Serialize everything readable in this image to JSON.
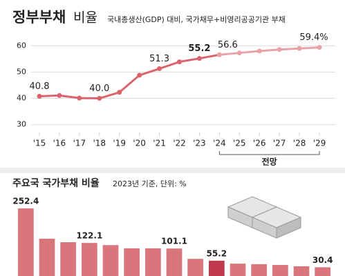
{
  "chart_data": [
    {
      "type": "line",
      "title": "정부부채",
      "title_light": "비율",
      "subtitle": "국내총생산(GDP) 대비, 국가채무+비영리공공기관 부채",
      "categories": [
        "'15",
        "'16",
        "'17",
        "'18",
        "'19",
        "'20",
        "'21",
        "'22",
        "'23",
        "'24",
        "'25",
        "'26",
        "'27",
        "'28",
        "'29"
      ],
      "values": [
        40.8,
        41.1,
        40.1,
        40.0,
        42.3,
        48.8,
        51.3,
        53.9,
        55.2,
        56.6,
        57.3,
        58.0,
        58.6,
        59.0,
        59.4
      ],
      "value_labels": [
        "40.8",
        null,
        null,
        "40.0",
        null,
        null,
        "51.3",
        null,
        "55.2",
        "56.6",
        null,
        null,
        null,
        null,
        "59.4%"
      ],
      "highlight_index": 8,
      "color": "#d9646b",
      "forecast_color": "#e9a3a6",
      "forecast": {
        "label": "전망",
        "from": 9,
        "to": 14
      },
      "ylim": [
        27,
        63
      ],
      "yticks": [
        30,
        40,
        50,
        60
      ],
      "grid": true
    },
    {
      "type": "bar",
      "title": "주요국 국가부채 비율",
      "subtitle": "2023년 기준, 단위: %",
      "categories": [
        null,
        null,
        null,
        null,
        null,
        null,
        null,
        null,
        null,
        null,
        null,
        null,
        null,
        null,
        null
      ],
      "values": [
        252.4,
        138.0,
        125.0,
        122.1,
        114.0,
        102.0,
        102.0,
        101.1,
        62.0,
        55.2,
        44.0,
        42.0,
        39.0,
        34.0,
        30.4
      ],
      "value_labels": [
        "252.4",
        null,
        null,
        "122.1",
        null,
        null,
        null,
        "101.1",
        null,
        "55.2",
        null,
        null,
        null,
        null,
        "30.4"
      ],
      "highlight_index": 9,
      "color": "#d9767c",
      "highlight_color": "#c0394a",
      "ylim": [
        0,
        260
      ]
    }
  ]
}
